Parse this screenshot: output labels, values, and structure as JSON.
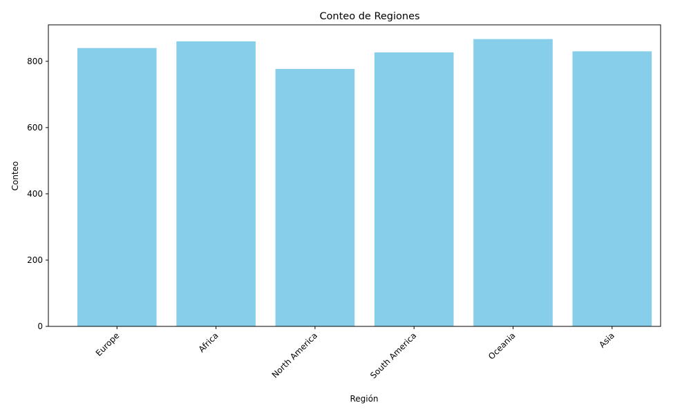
{
  "chart_data": {
    "type": "bar",
    "title": "Conteo de Regiones",
    "xlabel": "Región",
    "ylabel": "Conteo",
    "categories": [
      "Europe",
      "Africa",
      "North America",
      "South America",
      "Oceania",
      "Asia"
    ],
    "values": [
      840,
      860,
      777,
      827,
      867,
      830
    ],
    "ylim": [
      0,
      910
    ],
    "yticks": [
      0,
      200,
      400,
      600,
      800
    ],
    "bar_color": "#87ceeb",
    "grid": false,
    "x_tick_rotation_deg": 45
  }
}
